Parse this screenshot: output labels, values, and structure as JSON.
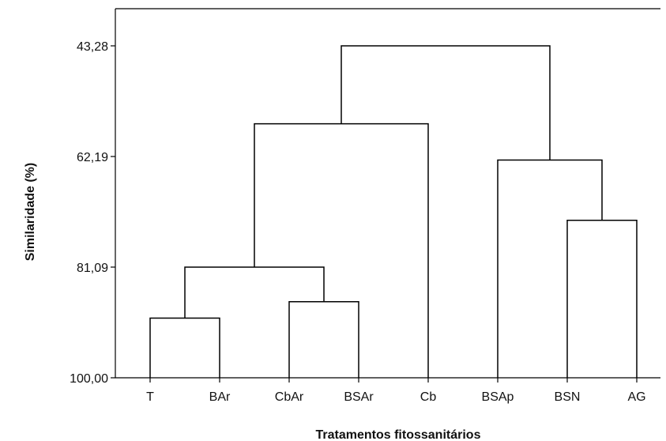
{
  "chart_data": {
    "type": "dendrogram",
    "xlabel": "Tratamentos fitossanitários",
    "ylabel": "Similaridade  (%)",
    "ylim": [
      43.28,
      100.0
    ],
    "y_ticks": [
      "43,28",
      "62,19",
      "81,09",
      "100,00"
    ],
    "y_tick_values": [
      43.28,
      62.19,
      81.09,
      100.0
    ],
    "leaves": [
      "T",
      "BAr",
      "CbAr",
      "BSAr",
      "Cb",
      "BSAp",
      "BSN",
      "AG"
    ],
    "merges": [
      {
        "left": "T",
        "right": "BAr",
        "similarity": 89.8
      },
      {
        "left": "CbAr",
        "right": "BSAr",
        "similarity": 87.0
      },
      {
        "left": "T+BAr",
        "right": "CbAr+BSAr",
        "similarity": 81.1
      },
      {
        "left": "T+BAr+CbAr+BSAr",
        "right": "Cb",
        "similarity": 56.6
      },
      {
        "left": "BSN",
        "right": "AG",
        "similarity": 73.1
      },
      {
        "left": "BSAp",
        "right": "BSN+AG",
        "similarity": 62.8
      },
      {
        "left": "T+BAr+CbAr+BSAr+Cb",
        "right": "BSAp+BSN+AG",
        "similarity": 43.28
      }
    ]
  }
}
